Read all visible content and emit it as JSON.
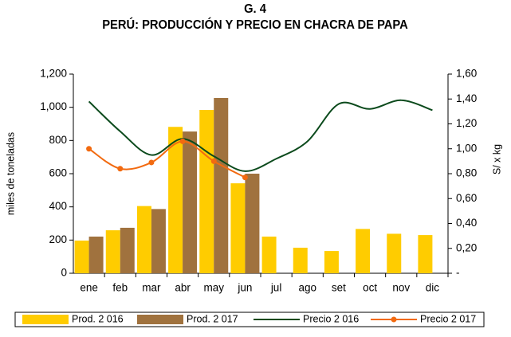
{
  "chart_data": {
    "type": "bar-line",
    "title": "G. 4",
    "subtitle": "PERÚ: PRODUCCIÓN Y PRECIO EN CHACRA DE PAPA",
    "ylabel": "miles de toneladas",
    "y2label": "S/ x kg",
    "categories": [
      "ene",
      "feb",
      "mar",
      "abr",
      "may",
      "jun",
      "jul",
      "ago",
      "set",
      "oct",
      "nov",
      "dic"
    ],
    "series": [
      {
        "name": "Prod. 2 016",
        "type": "bar",
        "color": "#FFCC00",
        "values": [
          197,
          259,
          405,
          882,
          984,
          542,
          221,
          154,
          134,
          267,
          238,
          230
        ]
      },
      {
        "name": "Prod. 2 017",
        "type": "bar",
        "color": "#A0723E",
        "values": [
          221,
          274,
          387,
          854,
          1056,
          600,
          null,
          null,
          null,
          null,
          null,
          null
        ]
      },
      {
        "name": "Precio 2 016",
        "type": "line",
        "axis": "y2",
        "color": "#0B4A1C",
        "values": [
          1.38,
          1.14,
          0.95,
          1.08,
          0.94,
          0.82,
          0.92,
          1.06,
          1.36,
          1.32,
          1.39,
          1.31
        ]
      },
      {
        "name": "Precio 2 017",
        "type": "line",
        "axis": "y2",
        "marker": true,
        "color": "#F26A10",
        "values": [
          1.0,
          0.84,
          0.89,
          1.06,
          0.9,
          0.77,
          null,
          null,
          null,
          null,
          null,
          null
        ]
      }
    ],
    "ylim": [
      0,
      1200
    ],
    "yticks": [
      0,
      200,
      400,
      600,
      800,
      {
        "value": 1000,
        "label": "1,000"
      },
      {
        "value": 1200,
        "label": "1,200"
      }
    ],
    "y2lim": [
      0,
      1.6
    ],
    "y2ticks": [
      {
        "value": 0,
        "label": "-"
      },
      {
        "value": 0.2,
        "label": "0,20"
      },
      {
        "value": 0.4,
        "label": "0,40"
      },
      {
        "value": 0.6,
        "label": "0,60"
      },
      {
        "value": 0.8,
        "label": "0,80"
      },
      {
        "value": 1.0,
        "label": "1,00"
      },
      {
        "value": 1.2,
        "label": "1,20"
      },
      {
        "value": 1.4,
        "label": "1,40"
      },
      {
        "value": 1.6,
        "label": "1,60"
      }
    ],
    "legend": "bottom"
  }
}
